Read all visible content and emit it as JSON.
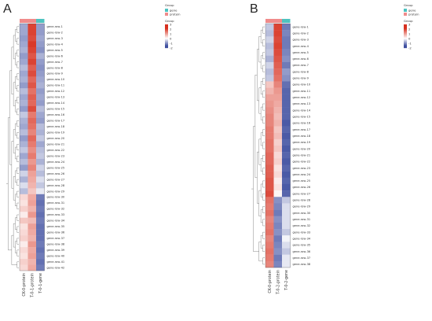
{
  "chart_data": [
    {
      "type": "heatmap",
      "panel_label": "A",
      "columns": [
        "CK-0-protein",
        "T-0-1-protein",
        "T-0-1-gene"
      ],
      "group_legend": {
        "title": "Group",
        "entries": [
          "gene",
          "protein"
        ]
      },
      "color_legend": {
        "title": "Group",
        "ticks": [
          "3",
          "2",
          "1",
          "0",
          "-1",
          "-2"
        ]
      },
      "rows": [
        {
          "label": "gene-row-1",
          "values": [
            -0.8,
            2.0,
            -0.9
          ]
        },
        {
          "label": "gene-row-2",
          "values": [
            -0.8,
            2.0,
            -0.9
          ]
        },
        {
          "label": "gene-row-3",
          "values": [
            -0.9,
            1.9,
            -0.8
          ]
        },
        {
          "label": "gene-row-4",
          "values": [
            -0.8,
            2.1,
            -0.9
          ]
        },
        {
          "label": "gene-row-5",
          "values": [
            -0.7,
            2.0,
            -1.0
          ]
        },
        {
          "label": "gene-row-6",
          "values": [
            -0.9,
            1.8,
            -0.7
          ]
        },
        {
          "label": "gene-row-7",
          "values": [
            -0.8,
            2.0,
            -0.9
          ]
        },
        {
          "label": "gene-row-8",
          "values": [
            -0.6,
            1.7,
            -1.0
          ]
        },
        {
          "label": "gene-row-9",
          "values": [
            -0.8,
            1.9,
            -0.9
          ]
        },
        {
          "label": "gene-row-10",
          "values": [
            -0.7,
            1.6,
            -0.8
          ]
        },
        {
          "label": "gene-row-11",
          "values": [
            -0.9,
            1.8,
            -0.7
          ]
        },
        {
          "label": "gene-row-12",
          "values": [
            -0.6,
            1.5,
            -0.9
          ]
        },
        {
          "label": "gene-row-13",
          "values": [
            -0.8,
            1.7,
            -0.8
          ]
        },
        {
          "label": "gene-row-14",
          "values": [
            -0.7,
            1.6,
            -0.9
          ]
        },
        {
          "label": "gene-row-15",
          "values": [
            -0.9,
            1.9,
            -0.6
          ]
        },
        {
          "label": "gene-row-16",
          "values": [
            -0.5,
            1.4,
            -0.8
          ]
        },
        {
          "label": "gene-row-17",
          "values": [
            -0.7,
            1.6,
            -0.9
          ]
        },
        {
          "label": "gene-row-18",
          "values": [
            -0.8,
            1.5,
            -0.6
          ]
        },
        {
          "label": "gene-row-19",
          "values": [
            -0.6,
            1.3,
            -0.7
          ]
        },
        {
          "label": "gene-row-20",
          "values": [
            -0.9,
            1.6,
            -0.5
          ]
        },
        {
          "label": "gene-row-21",
          "values": [
            -0.7,
            1.4,
            -0.8
          ]
        },
        {
          "label": "gene-row-22",
          "values": [
            -0.5,
            1.2,
            -0.6
          ]
        },
        {
          "label": "gene-row-23",
          "values": [
            -0.8,
            1.4,
            -0.5
          ]
        },
        {
          "label": "gene-row-24",
          "values": [
            -0.6,
            1.1,
            -0.7
          ]
        },
        {
          "label": "gene-row-25",
          "values": [
            -0.9,
            1.3,
            -0.4
          ]
        },
        {
          "label": "gene-row-26",
          "values": [
            -0.4,
            1.0,
            -0.6
          ]
        },
        {
          "label": "gene-row-27",
          "values": [
            -0.7,
            0.9,
            -0.3
          ]
        },
        {
          "label": "gene-row-28",
          "values": [
            -0.3,
            0.8,
            -0.5
          ]
        },
        {
          "label": "gene-row-29",
          "values": [
            -0.6,
            0.6,
            -0.2
          ]
        },
        {
          "label": "gene-row-30",
          "values": [
            0.4,
            0.9,
            -1.2
          ]
        },
        {
          "label": "gene-row-31",
          "values": [
            0.3,
            1.0,
            -1.3
          ]
        },
        {
          "label": "gene-row-32",
          "values": [
            0.5,
            0.8,
            -1.2
          ]
        },
        {
          "label": "gene-row-33",
          "values": [
            0.2,
            1.1,
            -1.3
          ]
        },
        {
          "label": "gene-row-34",
          "values": [
            0.6,
            0.7,
            -1.2
          ]
        },
        {
          "label": "gene-row-35",
          "values": [
            0.3,
            1.0,
            -1.3
          ]
        },
        {
          "label": "gene-row-36",
          "values": [
            0.4,
            0.9,
            -1.3
          ]
        },
        {
          "label": "gene-row-37",
          "values": [
            0.5,
            0.8,
            -1.3
          ]
        },
        {
          "label": "gene-row-38",
          "values": [
            0.2,
            1.1,
            -1.2
          ]
        },
        {
          "label": "gene-row-39",
          "values": [
            0.4,
            0.9,
            -1.3
          ]
        },
        {
          "label": "gene-row-40",
          "values": [
            0.3,
            1.0,
            -1.2
          ]
        },
        {
          "label": "gene-row-41",
          "values": [
            0.5,
            0.8,
            -1.3
          ]
        },
        {
          "label": "gene-row-42",
          "values": [
            0.4,
            0.9,
            -1.2
          ]
        }
      ]
    },
    {
      "type": "heatmap",
      "panel_label": "B",
      "columns": [
        "CK-0-protein",
        "T-0-2-protein",
        "T-0-2-gene"
      ],
      "group_legend": {
        "title": "Group",
        "entries": [
          "gene",
          "protein"
        ]
      },
      "color_legend": {
        "title": "Group",
        "ticks": [
          "3",
          "2",
          "1",
          "0",
          "-1",
          "-2"
        ]
      },
      "rows": [
        {
          "label": "gene-row-1",
          "values": [
            -0.5,
            2.0,
            -1.2
          ]
        },
        {
          "label": "gene-row-2",
          "values": [
            -0.6,
            2.0,
            -1.1
          ]
        },
        {
          "label": "gene-row-3",
          "values": [
            -0.4,
            1.9,
            -1.2
          ]
        },
        {
          "label": "gene-row-4",
          "values": [
            -0.6,
            2.0,
            -1.2
          ]
        },
        {
          "label": "gene-row-5",
          "values": [
            -0.5,
            1.9,
            -1.1
          ]
        },
        {
          "label": "gene-row-6",
          "values": [
            -0.7,
            1.8,
            -1.0
          ]
        },
        {
          "label": "gene-row-7",
          "values": [
            -0.4,
            1.7,
            -1.2
          ]
        },
        {
          "label": "gene-row-8",
          "values": [
            -0.6,
            1.6,
            -0.9
          ]
        },
        {
          "label": "gene-row-9",
          "values": [
            -0.5,
            1.5,
            -1.0
          ]
        },
        {
          "label": "gene-row-10",
          "values": [
            0.6,
            1.3,
            -1.3
          ]
        },
        {
          "label": "gene-row-11",
          "values": [
            0.8,
            1.1,
            -1.4
          ]
        },
        {
          "label": "gene-row-12",
          "values": [
            1.0,
            1.0,
            -1.4
          ]
        },
        {
          "label": "gene-row-13",
          "values": [
            1.1,
            0.9,
            -1.4
          ]
        },
        {
          "label": "gene-row-14",
          "values": [
            1.2,
            0.8,
            -1.4
          ]
        },
        {
          "label": "gene-row-15",
          "values": [
            1.3,
            0.7,
            -1.4
          ]
        },
        {
          "label": "gene-row-16",
          "values": [
            1.3,
            0.8,
            -1.5
          ]
        },
        {
          "label": "gene-row-17",
          "values": [
            1.4,
            0.6,
            -1.4
          ]
        },
        {
          "label": "gene-row-18",
          "values": [
            1.4,
            0.7,
            -1.5
          ]
        },
        {
          "label": "gene-row-19",
          "values": [
            1.5,
            0.5,
            -1.4
          ]
        },
        {
          "label": "gene-row-20",
          "values": [
            1.5,
            0.6,
            -1.5
          ]
        },
        {
          "label": "gene-row-21",
          "values": [
            1.6,
            0.4,
            -1.4
          ]
        },
        {
          "label": "gene-row-22",
          "values": [
            1.6,
            0.5,
            -1.5
          ]
        },
        {
          "label": "gene-row-23",
          "values": [
            1.7,
            0.3,
            -1.4
          ]
        },
        {
          "label": "gene-row-24",
          "values": [
            1.7,
            0.4,
            -1.5
          ]
        },
        {
          "label": "gene-row-25",
          "values": [
            1.8,
            0.2,
            -1.4
          ]
        },
        {
          "label": "gene-row-26",
          "values": [
            1.8,
            0.3,
            -1.5
          ]
        },
        {
          "label": "gene-row-27",
          "values": [
            1.9,
            0.1,
            -1.4
          ]
        },
        {
          "label": "gene-row-28",
          "values": [
            1.5,
            -1.0,
            -0.5
          ]
        },
        {
          "label": "gene-row-29",
          "values": [
            1.4,
            -1.1,
            -0.3
          ]
        },
        {
          "label": "gene-row-30",
          "values": [
            1.5,
            -1.2,
            -0.3
          ]
        },
        {
          "label": "gene-row-31",
          "values": [
            1.3,
            -1.0,
            -0.3
          ]
        },
        {
          "label": "gene-row-32",
          "values": [
            1.4,
            -1.1,
            -0.3
          ]
        },
        {
          "label": "gene-row-33",
          "values": [
            1.5,
            -1.0,
            -0.5
          ]
        },
        {
          "label": "gene-row-34",
          "values": [
            1.3,
            -1.2,
            -0.1
          ]
        },
        {
          "label": "gene-row-35",
          "values": [
            1.4,
            -1.1,
            -0.3
          ]
        },
        {
          "label": "gene-row-36",
          "values": [
            1.5,
            -1.0,
            -0.5
          ]
        },
        {
          "label": "gene-row-37",
          "values": [
            1.4,
            -1.2,
            -0.2
          ]
        },
        {
          "label": "gene-row-38",
          "values": [
            1.3,
            -1.1,
            -0.2
          ]
        }
      ]
    }
  ],
  "colors": {
    "high": "#d7301f",
    "mid": "#ffffff",
    "low": "#3f4fa0",
    "gene_group": "#4ec3c0",
    "protein_group": "#f08b8b",
    "frame": "#444444"
  }
}
